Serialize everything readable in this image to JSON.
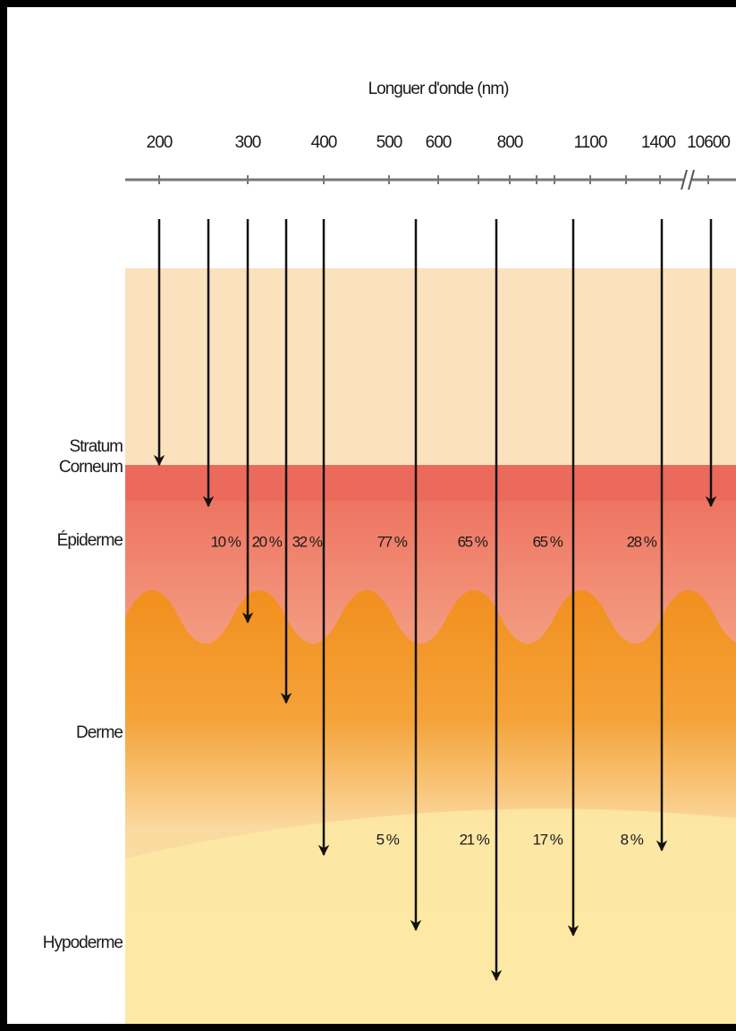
{
  "axis": {
    "title": "Longuer d'onde (nm)",
    "ticks": [
      "200",
      "300",
      "400",
      "500",
      "600",
      "800",
      "1100",
      "1400",
      "10600"
    ]
  },
  "layers": [
    {
      "lines": [
        "Stratum",
        "Corneum"
      ]
    },
    {
      "lines": [
        "Épiderme"
      ]
    },
    {
      "lines": [
        "Derme"
      ]
    },
    {
      "lines": [
        "Hypoderme"
      ]
    }
  ],
  "epiderme_absorption": [
    "10 %",
    "20 %",
    "32 %",
    "77 %",
    "65 %",
    "65 %",
    "28 %"
  ],
  "derme_absorption": [
    "5 %",
    "21 %",
    "17 %",
    "8 %"
  ]
}
